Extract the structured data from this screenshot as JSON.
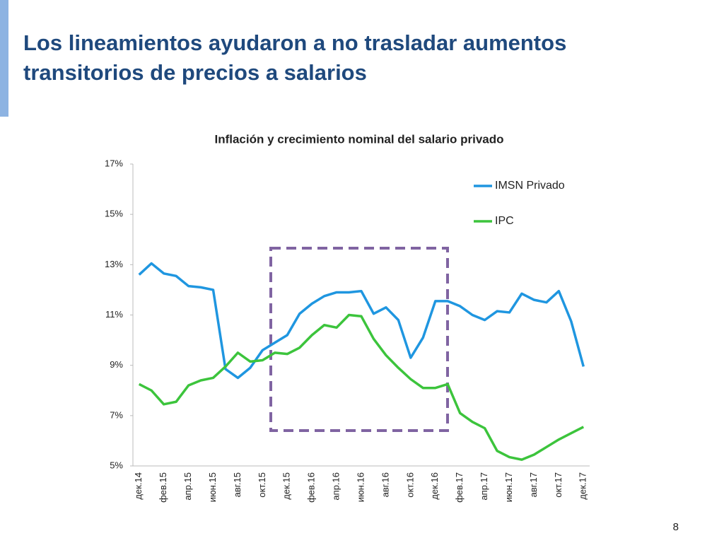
{
  "title": "Los lineamientos ayudaron a no trasladar aumentos transitorios de precios a salarios",
  "page_number": 8,
  "chart_data": {
    "type": "line",
    "title": "Inflación y crecimiento nominal del salario privado",
    "categories": [
      "дек.14",
      null,
      "фев.15",
      null,
      "апр.15",
      null,
      "июн.15",
      null,
      "авг.15",
      null,
      "окт.15",
      null,
      "дек.15",
      null,
      "фев.16",
      null,
      "апр.16",
      null,
      "июн.16",
      null,
      "авг.16",
      null,
      "окт.16",
      null,
      "дек.16",
      null,
      "фев.17",
      null,
      "апр.17",
      null,
      "июн.17",
      null,
      "авг.17",
      null,
      "окт.17",
      null,
      "дек.17"
    ],
    "series": [
      {
        "name": "IMSN Privado",
        "color": "#1f96e0",
        "values": [
          12.6,
          13.05,
          12.65,
          12.55,
          12.15,
          12.1,
          12.0,
          8.85,
          8.5,
          8.9,
          9.6,
          9.9,
          10.2,
          11.05,
          11.45,
          11.75,
          11.9,
          11.9,
          11.95,
          11.05,
          11.3,
          10.8,
          9.3,
          10.1,
          11.55,
          11.55,
          11.35,
          11.0,
          10.8,
          11.15,
          11.1,
          11.85,
          11.6,
          11.5,
          11.95,
          10.75,
          8.95
        ]
      },
      {
        "name": "IPC",
        "color": "#3cc43c",
        "values": [
          8.25,
          8.0,
          7.45,
          7.55,
          8.2,
          8.4,
          8.5,
          8.95,
          9.5,
          9.15,
          9.2,
          9.5,
          9.45,
          9.7,
          10.2,
          10.6,
          10.5,
          11.0,
          10.95,
          10.05,
          9.4,
          8.9,
          8.45,
          8.1,
          8.1,
          8.25,
          7.1,
          6.75,
          6.5,
          5.6,
          5.35,
          5.25,
          5.45,
          5.75,
          6.05,
          6.3,
          6.55
        ]
      }
    ],
    "ylim": [
      5,
      17
    ],
    "yticks": [
      {
        "value": 5,
        "label": "5%"
      },
      {
        "value": 7,
        "label": "7%"
      },
      {
        "value": 9,
        "label": "9%"
      },
      {
        "value": 11,
        "label": "11%"
      },
      {
        "value": 13,
        "label": "13%"
      },
      {
        "value": 15,
        "label": "15%"
      },
      {
        "value": 17,
        "label": "17%"
      }
    ],
    "grid": false,
    "legend": "upper right"
  }
}
